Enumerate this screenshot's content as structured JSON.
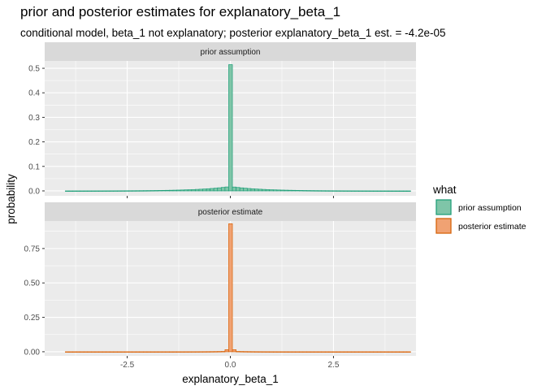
{
  "title": "prior and posterior estimates for explanatory_beta_1",
  "subtitle": "conditional model, beta_1 not explanatory; posterior explanatory_beta_1 est. = -4.2e-05",
  "chart_data": {
    "type": "bar",
    "xlabel": "explanatory_beta_1",
    "ylabel": "probability",
    "x_ticks": [
      -2.5,
      0.0,
      2.5
    ],
    "x_tick_labels": [
      "-2.5",
      "0.0",
      "2.5"
    ],
    "xlim": [
      -4.5,
      4.5
    ],
    "bin_width": 0.09,
    "data_range": [
      -4.0,
      4.4
    ],
    "grid": true,
    "legend": {
      "title": "what",
      "position": "right",
      "entries": [
        {
          "label": "prior assumption",
          "fill": "#7fc5a8",
          "stroke": "#1b9e77"
        },
        {
          "label": "posterior estimate",
          "fill": "#f0a273",
          "stroke": "#d95f02"
        }
      ]
    },
    "facets": [
      {
        "strip": "prior assumption",
        "ylim": [
          -0.02,
          0.53
        ],
        "y_ticks": [
          0.0,
          0.1,
          0.2,
          0.3,
          0.4,
          0.5
        ],
        "y_tick_labels": [
          "0.0",
          "0.1",
          "0.2",
          "0.3",
          "0.4",
          "0.5"
        ],
        "spike": {
          "x": 0.0,
          "y": 0.515
        },
        "background_peak": 0.018,
        "background_scale": 0.75,
        "fill": "#7fc5a8",
        "stroke": "#1b9e77"
      },
      {
        "strip": "posterior estimate",
        "ylim": [
          -0.03,
          0.95
        ],
        "y_ticks": [
          0.0,
          0.25,
          0.5,
          0.75
        ],
        "y_tick_labels": [
          "0.00",
          "0.25",
          "0.50",
          "0.75"
        ],
        "spike": {
          "x": 0.0,
          "y": 0.93
        },
        "background_peak": 0.004,
        "background_scale": 0.35,
        "neighbors": [
          {
            "x": -0.09,
            "y": 0.015
          },
          {
            "x": 0.09,
            "y": 0.015
          }
        ],
        "fill": "#f0a273",
        "stroke": "#d95f02"
      }
    ]
  }
}
